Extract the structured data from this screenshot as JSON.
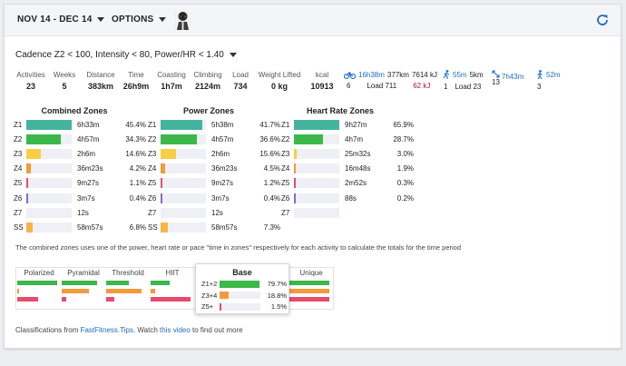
{
  "header": {
    "date_range": "NOV 14 - DEC 14",
    "options": "OPTIONS"
  },
  "filter": "Cadence Z2 < 100, Intensity < 80, Power/HR < 1.40",
  "stats": [
    {
      "label": "Activities",
      "value": "23"
    },
    {
      "label": "Weeks",
      "value": "5"
    },
    {
      "label": "Distance",
      "value": "383km"
    },
    {
      "label": "Time",
      "value": "26h9m"
    },
    {
      "label": "Coasting",
      "value": "1h7m"
    },
    {
      "label": "Climbing",
      "value": "2124m"
    },
    {
      "label": "Load",
      "value": "734"
    },
    {
      "label": "Weight Lifted",
      "value": "0 kg"
    },
    {
      "label": "kcal",
      "value": "10913"
    }
  ],
  "activities": {
    "ride": {
      "icon": "bike-icon",
      "time": "16h38m",
      "distance": "377km",
      "kj": "7614 kJ",
      "count": "6",
      "load": "Load 711",
      "kj2": "62 kJ"
    },
    "run": {
      "icon": "run-icon",
      "time": "55m",
      "distance": "5km",
      "count": "1",
      "load": "Load 23"
    },
    "other": {
      "icon": "arrows-icon",
      "time": "7h43m",
      "count": "13"
    },
    "walk": {
      "icon": "walk-icon",
      "time": "52m",
      "count": "3"
    }
  },
  "zones": {
    "combined": {
      "title": "Combined Zones",
      "rows": [
        {
          "z": "Z1",
          "time": "6h33m",
          "pct": "45.4%",
          "frac": 0.454,
          "color": "#45b39d"
        },
        {
          "z": "Z2",
          "time": "4h57m",
          "pct": "34.3%",
          "frac": 0.343,
          "color": "#3cb84a"
        },
        {
          "z": "Z3",
          "time": "2h6m",
          "pct": "14.6%",
          "frac": 0.146,
          "color": "#f7cf45"
        },
        {
          "z": "Z4",
          "time": "36m23s",
          "pct": "4.2%",
          "frac": 0.042,
          "color": "#f39a3a"
        },
        {
          "z": "Z5",
          "time": "9m27s",
          "pct": "1.1%",
          "frac": 0.011,
          "color": "#e84b6e"
        },
        {
          "z": "Z6",
          "time": "3m7s",
          "pct": "0.4%",
          "frac": 0.004,
          "color": "#8a6abf"
        },
        {
          "z": "Z7",
          "time": "12s",
          "pct": "",
          "frac": 0.0,
          "color": "#555555"
        },
        {
          "z": "SS",
          "time": "58m57s",
          "pct": "6.8%",
          "frac": 0.068,
          "color": "#f7b545"
        }
      ]
    },
    "power": {
      "title": "Power Zones",
      "rows": [
        {
          "z": "Z1",
          "time": "5h38m",
          "pct": "41.7%",
          "frac": 0.417,
          "color": "#45b39d"
        },
        {
          "z": "Z2",
          "time": "4h57m",
          "pct": "36.6%",
          "frac": 0.366,
          "color": "#3cb84a"
        },
        {
          "z": "Z3",
          "time": "2h6m",
          "pct": "15.6%",
          "frac": 0.156,
          "color": "#f7cf45"
        },
        {
          "z": "Z4",
          "time": "36m23s",
          "pct": "4.5%",
          "frac": 0.045,
          "color": "#f39a3a"
        },
        {
          "z": "Z5",
          "time": "9m27s",
          "pct": "1.2%",
          "frac": 0.012,
          "color": "#e84b6e"
        },
        {
          "z": "Z6",
          "time": "3m7s",
          "pct": "0.4%",
          "frac": 0.004,
          "color": "#8a6abf"
        },
        {
          "z": "Z7",
          "time": "12s",
          "pct": "",
          "frac": 0.0,
          "color": "#555555"
        },
        {
          "z": "SS",
          "time": "58m57s",
          "pct": "7.3%",
          "frac": 0.073,
          "color": "#f7b545"
        }
      ]
    },
    "hr": {
      "title": "Heart Rate Zones",
      "rows": [
        {
          "z": "Z1",
          "time": "9h27m",
          "pct": "65.9%",
          "frac": 0.659,
          "color": "#45b39d"
        },
        {
          "z": "Z2",
          "time": "4h7m",
          "pct": "28.7%",
          "frac": 0.287,
          "color": "#3cb84a"
        },
        {
          "z": "Z3",
          "time": "25m32s",
          "pct": "3.0%",
          "frac": 0.03,
          "color": "#f7cf45"
        },
        {
          "z": "Z4",
          "time": "16m48s",
          "pct": "1.9%",
          "frac": 0.019,
          "color": "#f39a3a"
        },
        {
          "z": "Z5",
          "time": "2m52s",
          "pct": "0.3%",
          "frac": 0.003,
          "color": "#e84b6e"
        },
        {
          "z": "Z6",
          "time": "88s",
          "pct": "0.2%",
          "frac": 0.002,
          "color": "#8a6abf"
        },
        {
          "z": "Z7",
          "time": "",
          "pct": "",
          "frac": 0.0,
          "color": "#555555"
        }
      ]
    }
  },
  "note": "The combined zones uses one of the power, heart rate or pace \"time in zones\" respectively for each activity to calculate the totals for the time period",
  "classifications": [
    {
      "name": "Polarized",
      "bars": [
        {
          "frac": 0.95,
          "color": "#3cb84a"
        },
        {
          "frac": 0.05,
          "color": "#f39a3a"
        },
        {
          "frac": 0.5,
          "color": "#e84b6e"
        }
      ]
    },
    {
      "name": "Pyramidal",
      "bars": [
        {
          "frac": 0.85,
          "color": "#3cb84a"
        },
        {
          "frac": 0.65,
          "color": "#f39a3a"
        },
        {
          "frac": 0.1,
          "color": "#e84b6e"
        }
      ]
    },
    {
      "name": "Threshold",
      "bars": [
        {
          "frac": 0.55,
          "color": "#3cb84a"
        },
        {
          "frac": 0.85,
          "color": "#f39a3a"
        },
        {
          "frac": 0.2,
          "color": "#e84b6e"
        }
      ]
    },
    {
      "name": "HIIT",
      "bars": [
        {
          "frac": 0.45,
          "color": "#3cb84a"
        },
        {
          "frac": 0.1,
          "color": "#f39a3a"
        },
        {
          "frac": 0.95,
          "color": "#e84b6e"
        }
      ]
    },
    {
      "name": "Unique",
      "bars": [
        {
          "frac": 0.95,
          "color": "#3cb84a"
        },
        {
          "frac": 0.95,
          "color": "#f39a3a"
        },
        {
          "frac": 0.95,
          "color": "#e84b6e"
        }
      ]
    }
  ],
  "base": {
    "title": "Base",
    "rows": [
      {
        "label": "Z1+2",
        "pct": "79.7%",
        "frac": 0.797,
        "color": "#3cb84a"
      },
      {
        "label": "Z3+4",
        "pct": "18.8%",
        "frac": 0.188,
        "color": "#f39a3a"
      },
      {
        "label": "Z5+",
        "pct": "1.5%",
        "frac": 0.015,
        "color": "#e84b6e"
      }
    ]
  },
  "footer": {
    "prefix": "Classifications from ",
    "link1": "FastFitness.Tips",
    "middle": ". Watch ",
    "link2": "this video",
    "suffix": " to find out more"
  }
}
